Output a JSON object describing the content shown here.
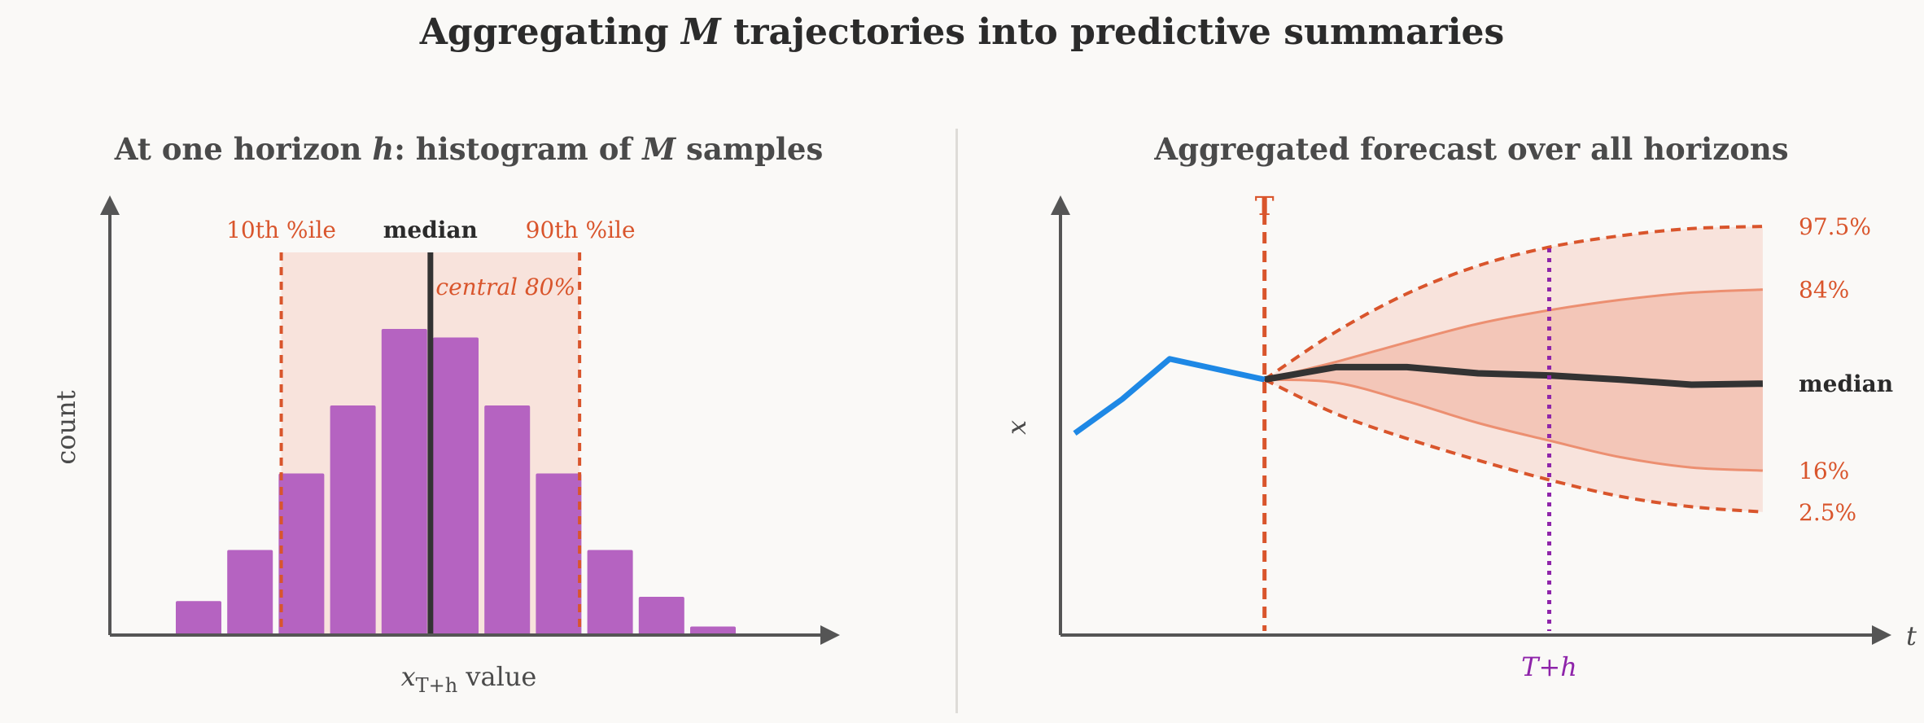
{
  "title": {
    "pre": "Aggregating ",
    "var": "M",
    "post": " trajectories into predictive summaries"
  },
  "colors": {
    "bar": "#b563c1",
    "orange": "#d9552c",
    "band_light": "#f8e3dc",
    "band_dark": "#f3c6b8",
    "dark": "#333333",
    "history": "#1e88e5",
    "horizon": "#8e24aa",
    "axis": "#555555"
  },
  "left_panel": {
    "title": {
      "pre": "At one horizon ",
      "h": "h",
      "mid": ": histogram of ",
      "m": "M",
      "post": " samples"
    },
    "ylabel": "count",
    "xlabel": {
      "base": "x",
      "sub": "T+h",
      "post": " value"
    },
    "labels": {
      "p10": "10th %ile",
      "median": "median",
      "p90": "90th %ile",
      "central": "central 80%"
    }
  },
  "right_panel": {
    "title": "Aggregated forecast over all horizons",
    "ylabel": "x",
    "xlabel": "t",
    "T_label": "T",
    "Th_label": "T+h",
    "band_labels": {
      "p975": "97.5%",
      "p84": "84%",
      "median": "median",
      "p16": "16%",
      "p25": "2.5%"
    }
  },
  "chart_data": [
    {
      "type": "bar",
      "title": "At one horizon h: histogram of M samples",
      "xlabel": "x_{T+h} value",
      "ylabel": "count",
      "bin_index": [
        0,
        1,
        2,
        3,
        4,
        5,
        6,
        7,
        8,
        9,
        10
      ],
      "values": [
        4,
        10,
        19,
        27,
        36,
        35,
        27,
        19,
        10,
        4.5,
        1
      ],
      "ylim": [
        0,
        45
      ],
      "percentile_markers": {
        "p10": 2.05,
        "median": 4.95,
        "p90": 7.85
      },
      "shaded_region": "central 80%"
    },
    {
      "type": "line",
      "title": "Aggregated forecast over all horizons",
      "xlabel": "t",
      "ylabel": "x",
      "history": {
        "t": [
          0,
          1,
          2,
          3,
          4
        ],
        "x": [
          0,
          0.33,
          0.72,
          0.62,
          0.52
        ]
      },
      "T": 4,
      "T_plus_h": 10,
      "t": [
        4,
        5.5,
        7,
        8.5,
        10,
        11.5,
        13,
        14.5
      ],
      "series": [
        {
          "name": "97.5%",
          "x": [
            0.52,
            0.98,
            1.35,
            1.62,
            1.8,
            1.91,
            1.98,
            2.0
          ]
        },
        {
          "name": "84%",
          "x": [
            0.52,
            0.69,
            0.88,
            1.06,
            1.19,
            1.29,
            1.36,
            1.39
          ]
        },
        {
          "name": "median",
          "x": [
            0.52,
            0.64,
            0.64,
            0.58,
            0.56,
            0.52,
            0.47,
            0.48
          ]
        },
        {
          "name": "16%",
          "x": [
            0.52,
            0.49,
            0.31,
            0.1,
            -0.07,
            -0.23,
            -0.33,
            -0.36
          ]
        },
        {
          "name": "2.5%",
          "x": [
            0.52,
            0.19,
            -0.05,
            -0.26,
            -0.45,
            -0.61,
            -0.71,
            -0.76
          ]
        }
      ],
      "xlim": [
        -0.3,
        16.8
      ],
      "ylim": [
        -1.95,
        2.3
      ]
    }
  ]
}
